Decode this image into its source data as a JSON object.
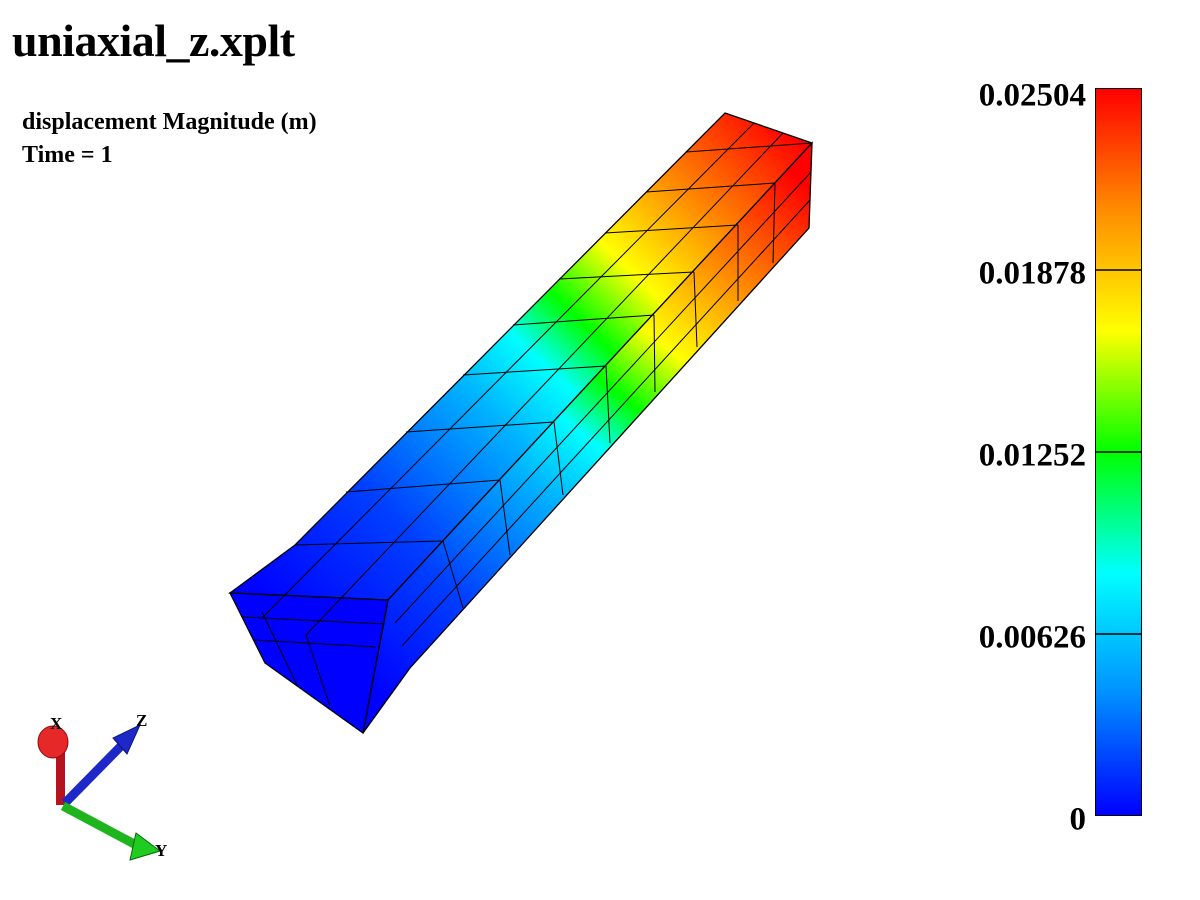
{
  "window": {
    "title": "uniaxial_z.xplt"
  },
  "info": {
    "field_label": "displacement Magnitude (m)",
    "time_label": "Time = 1"
  },
  "legend": {
    "labels": [
      "0.02504",
      "0.01878",
      "0.01252",
      "0.00626",
      "0"
    ],
    "min": 0,
    "max": 0.02504,
    "colormap": [
      "#0000ff",
      "#0090ff",
      "#00ffff",
      "#00ff00",
      "#ffff00",
      "#ff8c00",
      "#ff0000"
    ]
  },
  "triad": {
    "x_label": "X",
    "y_label": "Y",
    "z_label": "Z",
    "x_color": "#c8141e",
    "y_color": "#1eb41e",
    "z_color": "#1e28c8"
  },
  "model": {
    "mesh": "3x3x10 hexahedral bar",
    "color_low": "#0000ff",
    "color_high": "#ff0000"
  }
}
